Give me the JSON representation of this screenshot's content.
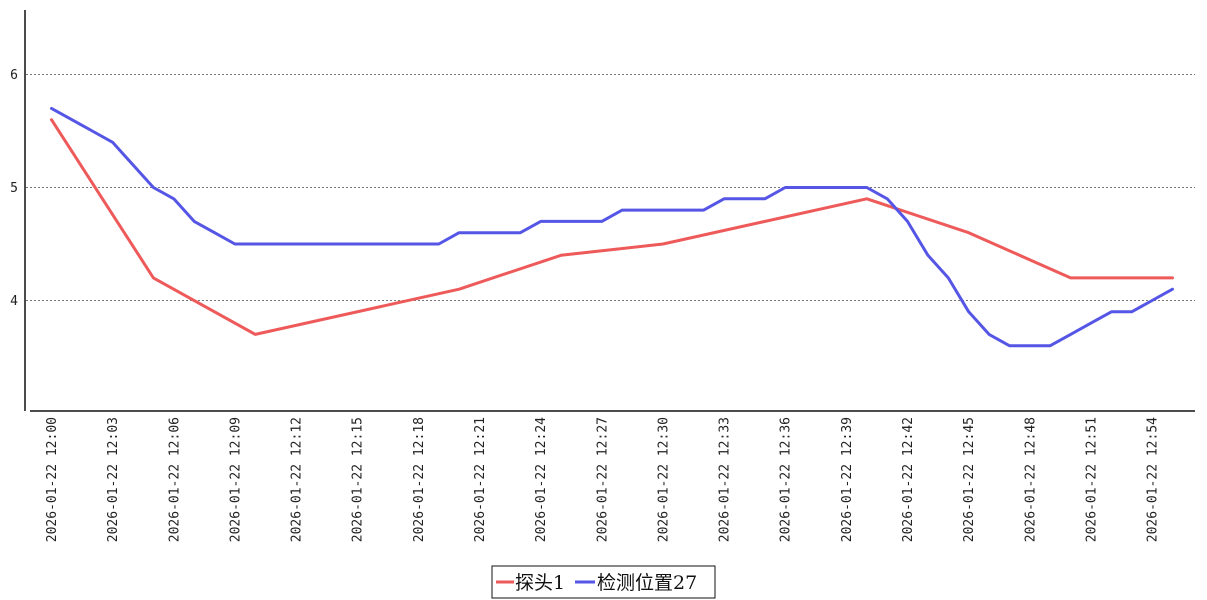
{
  "chart_data": {
    "type": "line",
    "x": [
      "2026-01-22 12:00",
      "2026-01-22 12:01",
      "2026-01-22 12:02",
      "2026-01-22 12:03",
      "2026-01-22 12:04",
      "2026-01-22 12:05",
      "2026-01-22 12:06",
      "2026-01-22 12:07",
      "2026-01-22 12:08",
      "2026-01-22 12:09",
      "2026-01-22 12:10",
      "2026-01-22 12:11",
      "2026-01-22 12:12",
      "2026-01-22 12:13",
      "2026-01-22 12:14",
      "2026-01-22 12:15",
      "2026-01-22 12:16",
      "2026-01-22 12:17",
      "2026-01-22 12:18",
      "2026-01-22 12:19",
      "2026-01-22 12:20",
      "2026-01-22 12:21",
      "2026-01-22 12:22",
      "2026-01-22 12:23",
      "2026-01-22 12:24",
      "2026-01-22 12:25",
      "2026-01-22 12:26",
      "2026-01-22 12:27",
      "2026-01-22 12:28",
      "2026-01-22 12:29",
      "2026-01-22 12:30",
      "2026-01-22 12:31",
      "2026-01-22 12:32",
      "2026-01-22 12:33",
      "2026-01-22 12:34",
      "2026-01-22 12:35",
      "2026-01-22 12:36",
      "2026-01-22 12:37",
      "2026-01-22 12:38",
      "2026-01-22 12:39",
      "2026-01-22 12:40",
      "2026-01-22 12:41",
      "2026-01-22 12:42",
      "2026-01-22 12:43",
      "2026-01-22 12:44",
      "2026-01-22 12:45",
      "2026-01-22 12:46",
      "2026-01-22 12:47",
      "2026-01-22 12:48",
      "2026-01-22 12:49",
      "2026-01-22 12:50",
      "2026-01-22 12:51",
      "2026-01-22 12:52",
      "2026-01-22 12:53",
      "2026-01-22 12:54",
      "2026-01-22 12:55"
    ],
    "xtick_labels": [
      "2026-01-22 12:00",
      "2026-01-22 12:03",
      "2026-01-22 12:06",
      "2026-01-22 12:09",
      "2026-01-22 12:12",
      "2026-01-22 12:15",
      "2026-01-22 12:18",
      "2026-01-22 12:21",
      "2026-01-22 12:24",
      "2026-01-22 12:27",
      "2026-01-22 12:30",
      "2026-01-22 12:33",
      "2026-01-22 12:36",
      "2026-01-22 12:39",
      "2026-01-22 12:42",
      "2026-01-22 12:45",
      "2026-01-22 12:48",
      "2026-01-22 12:51",
      "2026-01-22 12:54"
    ],
    "yticks": [
      4,
      5,
      6
    ],
    "ylim": [
      3.1,
      6.55
    ],
    "grid": "horizontal dotted",
    "legend_position": "bottom-center",
    "series": [
      {
        "name": "探头1",
        "color": "#ee5a5a",
        "points": [
          [
            "2026-01-22 12:00",
            5.6
          ],
          [
            "2026-01-22 12:05",
            4.2
          ],
          [
            "2026-01-22 12:10",
            3.7
          ],
          [
            "2026-01-22 12:20",
            4.1
          ],
          [
            "2026-01-22 12:25",
            4.4
          ],
          [
            "2026-01-22 12:30",
            4.5
          ],
          [
            "2026-01-22 12:40",
            4.9
          ],
          [
            "2026-01-22 12:45",
            4.6
          ],
          [
            "2026-01-22 12:50",
            4.2
          ],
          [
            "2026-01-22 12:55",
            4.2
          ]
        ]
      },
      {
        "name": "检测位置27",
        "color": "#5656e6",
        "points": [
          [
            "2026-01-22 12:00",
            5.7
          ],
          [
            "2026-01-22 12:01",
            5.6
          ],
          [
            "2026-01-22 12:02",
            5.5
          ],
          [
            "2026-01-22 12:03",
            5.4
          ],
          [
            "2026-01-22 12:04",
            5.2
          ],
          [
            "2026-01-22 12:05",
            5.0
          ],
          [
            "2026-01-22 12:06",
            4.9
          ],
          [
            "2026-01-22 12:07",
            4.7
          ],
          [
            "2026-01-22 12:08",
            4.6
          ],
          [
            "2026-01-22 12:09",
            4.5
          ],
          [
            "2026-01-22 12:19",
            4.5
          ],
          [
            "2026-01-22 12:20",
            4.6
          ],
          [
            "2026-01-22 12:23",
            4.6
          ],
          [
            "2026-01-22 12:24",
            4.7
          ],
          [
            "2026-01-22 12:27",
            4.7
          ],
          [
            "2026-01-22 12:28",
            4.8
          ],
          [
            "2026-01-22 12:32",
            4.8
          ],
          [
            "2026-01-22 12:33",
            4.9
          ],
          [
            "2026-01-22 12:35",
            4.9
          ],
          [
            "2026-01-22 12:36",
            5.0
          ],
          [
            "2026-01-22 12:40",
            5.0
          ],
          [
            "2026-01-22 12:41",
            4.9
          ],
          [
            "2026-01-22 12:42",
            4.7
          ],
          [
            "2026-01-22 12:43",
            4.4
          ],
          [
            "2026-01-22 12:44",
            4.2
          ],
          [
            "2026-01-22 12:45",
            3.9
          ],
          [
            "2026-01-22 12:46",
            3.7
          ],
          [
            "2026-01-22 12:47",
            3.6
          ],
          [
            "2026-01-22 12:49",
            3.6
          ],
          [
            "2026-01-22 12:50",
            3.7
          ],
          [
            "2026-01-22 12:51",
            3.8
          ],
          [
            "2026-01-22 12:52",
            3.9
          ],
          [
            "2026-01-22 12:53",
            3.9
          ],
          [
            "2026-01-22 12:54",
            4.0
          ],
          [
            "2026-01-22 12:55",
            4.1
          ]
        ]
      }
    ]
  }
}
